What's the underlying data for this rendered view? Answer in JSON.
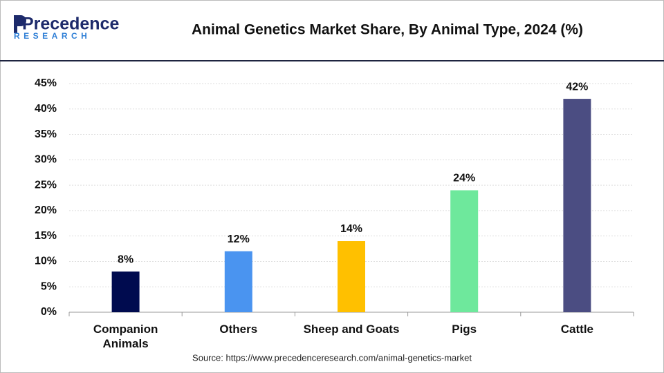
{
  "logo": {
    "name": "Precedence",
    "tagline": "RESEARCH"
  },
  "chart_data": {
    "type": "bar",
    "title": "Animal Genetics Market Share, By Animal Type, 2024 (%)",
    "categories": [
      "Companion Animals",
      "Others",
      "Sheep and Goats",
      "Pigs",
      "Cattle"
    ],
    "values": [
      8,
      12,
      14,
      24,
      42
    ],
    "value_labels": [
      "8%",
      "12%",
      "14%",
      "24%",
      "42%"
    ],
    "colors": [
      "#000b4f",
      "#4a94f0",
      "#ffc000",
      "#6ee89c",
      "#4b4d82"
    ],
    "ylim": [
      0,
      45
    ],
    "yticks": [
      {
        "value": 0,
        "label": "0%"
      },
      {
        "value": 5,
        "label": "5%"
      },
      {
        "value": 10,
        "label": "10%"
      },
      {
        "value": 15,
        "label": "15%"
      },
      {
        "value": 20,
        "label": "20%"
      },
      {
        "value": 25,
        "label": "25%"
      },
      {
        "value": 30,
        "label": "30%"
      },
      {
        "value": 35,
        "label": "35%"
      },
      {
        "value": 40,
        "label": "40%"
      },
      {
        "value": 45,
        "label": "45%"
      }
    ],
    "grid": true,
    "source": "Source: https://www.precedenceresearch.com/animal-genetics-market"
  }
}
